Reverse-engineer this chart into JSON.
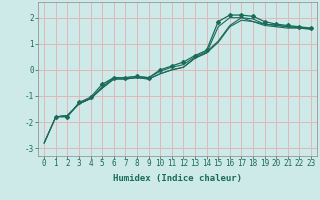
{
  "xlabel": "Humidex (Indice chaleur)",
  "ylabel": "",
  "bg_color": "#ceeae8",
  "grid_color": "#e0b8b8",
  "line_color": "#1a6b5a",
  "xlim": [
    -0.5,
    23.5
  ],
  "ylim": [
    -3.3,
    2.6
  ],
  "xticks": [
    0,
    1,
    2,
    3,
    4,
    5,
    6,
    7,
    8,
    9,
    10,
    11,
    12,
    13,
    14,
    15,
    16,
    17,
    18,
    19,
    20,
    21,
    22,
    23
  ],
  "yticks": [
    -3,
    -2,
    -1,
    0,
    1,
    2
  ],
  "lines": [
    {
      "x": [
        0,
        1,
        2,
        3,
        4,
        5,
        6,
        7,
        8,
        9,
        10,
        11,
        12,
        13,
        14,
        15,
        16,
        17,
        18,
        19,
        20,
        21,
        22,
        23
      ],
      "y": [
        -2.8,
        -1.8,
        -1.75,
        -1.3,
        -1.1,
        -0.7,
        -0.35,
        -0.35,
        -0.3,
        -0.35,
        -0.15,
        0.0,
        0.1,
        0.45,
        0.65,
        1.05,
        1.65,
        1.9,
        1.85,
        1.7,
        1.65,
        1.6,
        1.6,
        1.55
      ],
      "has_markers": false
    },
    {
      "x": [
        0,
        1,
        2,
        3,
        4,
        5,
        6,
        7,
        8,
        9,
        10,
        11,
        12,
        13,
        14,
        15,
        16,
        17,
        18,
        19,
        20,
        21,
        22,
        23
      ],
      "y": [
        -2.8,
        -1.8,
        -1.75,
        -1.3,
        -1.1,
        -0.65,
        -0.3,
        -0.3,
        -0.25,
        -0.3,
        -0.05,
        0.1,
        0.2,
        0.5,
        0.7,
        1.1,
        1.7,
        2.0,
        1.95,
        1.75,
        1.7,
        1.65,
        1.62,
        1.58
      ],
      "has_markers": false
    },
    {
      "x": [
        1,
        2,
        3,
        4,
        5,
        6,
        7,
        8,
        9,
        10,
        11,
        12,
        13,
        14,
        15,
        16,
        17,
        18,
        19,
        20,
        21,
        22,
        23
      ],
      "y": [
        -1.8,
        -1.8,
        -1.25,
        -1.05,
        -0.55,
        -0.3,
        -0.3,
        -0.25,
        -0.3,
        0.0,
        0.15,
        0.3,
        0.55,
        0.75,
        1.85,
        2.1,
        2.1,
        2.05,
        1.85,
        1.75,
        1.7,
        1.65,
        1.6
      ],
      "has_markers": true
    },
    {
      "x": [
        0,
        1,
        2,
        3,
        4,
        5,
        6,
        7,
        8,
        9,
        10,
        11,
        12,
        13,
        14,
        15,
        16,
        17,
        18,
        19,
        20,
        21,
        22,
        23
      ],
      "y": [
        -2.8,
        -1.8,
        -1.75,
        -1.3,
        -1.1,
        -0.7,
        -0.35,
        -0.35,
        -0.3,
        -0.35,
        -0.15,
        0.0,
        0.1,
        0.45,
        0.65,
        1.65,
        2.0,
        2.0,
        1.85,
        1.75,
        1.72,
        1.65,
        1.62,
        1.58
      ],
      "has_markers": false
    }
  ]
}
